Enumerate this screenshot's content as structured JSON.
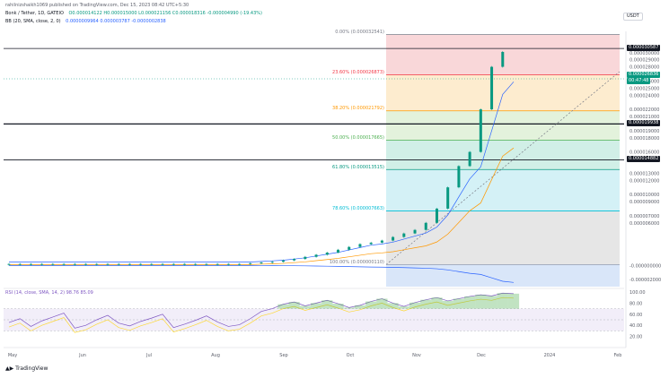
{
  "header": {
    "published": "rahilnizshaikh1069 published on TradingView.com, Dec 15, 2023 08:42 UTC+5:30",
    "symbol_line": "Bonk / Tether, 1D, GATEIO",
    "ohlc": "O0.000014122 H0.000015000 L0.000021156 C0.000018316 -0.000004990 (-19.43%)",
    "bb_line": "BB (20, SMA, close, 2, 0)",
    "bb_values": "0.0000009964 0.000003787 -0.0000002838",
    "currency": "USDT"
  },
  "price_axis": {
    "ticks": [
      "0.000030000",
      "0.000029000",
      "0.000028000",
      "0.000026000",
      "0.000025000",
      "0.000024000",
      "0.000022000",
      "0.000021000",
      "0.000019000",
      "0.000018000",
      "0.000016000",
      "0.000015000",
      "0.000013000",
      "0.000012000",
      "0.000010000",
      "0.000009000",
      "0.000007000",
      "0.000006000",
      "-0.000000000",
      "-0.000002000"
    ],
    "badges": [
      {
        "value": "0.000030587",
        "bg": "#131722",
        "fg": "#ffffff"
      },
      {
        "value": "0.000026836",
        "bg": "#089981",
        "fg": "#ffffff"
      },
      {
        "value": "00:47:48",
        "bg": "#089981",
        "fg": "#ffffff"
      },
      {
        "value": "0.000019938",
        "bg": "#131722",
        "fg": "#ffffff"
      },
      {
        "value": "0.000014882",
        "bg": "#131722",
        "fg": "#ffffff"
      }
    ]
  },
  "rsi_axis": {
    "ticks": [
      "100.00",
      "80.00",
      "60.00",
      "40.00",
      "20.00"
    ]
  },
  "rsi_header": "RSI (14, close, SMA, 14, 2)  98.76  85.09",
  "time_axis": [
    "May",
    "Jun",
    "Jul",
    "Aug",
    "Sep",
    "Oct",
    "Nov",
    "Dec",
    "2024",
    "Feb"
  ],
  "footer_logo": "TradingView",
  "colors": {
    "up": "#089981",
    "down": "#f23645",
    "bb": "#2962ff",
    "rsi": "#7e57c2",
    "rsi_ma": "#fdd835",
    "ema": "#ff9800"
  },
  "chart_data": {
    "type": "line",
    "title": "Bonk / Tether, 1D, GATEIO",
    "xlabel": "",
    "ylabel": "",
    "x_range": [
      "May 2023",
      "Feb 2024"
    ],
    "y_range": [
      -3e-06,
      3.3e-05
    ],
    "fib_levels": [
      {
        "label": "0.00% (0.000032541)",
        "value": 3.2541e-05,
        "color": "#787b86"
      },
      {
        "label": "23.60% (0.000026873)",
        "value": 2.6873e-05,
        "color": "#f23645"
      },
      {
        "label": "38.20% (0.000021792)",
        "value": 2.1792e-05,
        "color": "#ff9800"
      },
      {
        "label": "50.00% (0.000017665)",
        "value": 1.7665e-05,
        "color": "#4caf50"
      },
      {
        "label": "61.80% (0.000013515)",
        "value": 1.3515e-05,
        "color": "#089981"
      },
      {
        "label": "78.60% (0.000007663)",
        "value": 7.663e-06,
        "color": "#00bcd4"
      },
      {
        "label": "100.00% (0.000000110)",
        "value": 1.1e-07,
        "color": "#787b86"
      }
    ],
    "horizontal_lines": [
      3.0587e-05,
      1.9938e-05,
      1.4882e-05
    ],
    "series": [
      {
        "name": "Price",
        "values": [
          2e-07,
          2e-07,
          2e-07,
          2e-07,
          2e-07,
          2e-07,
          2e-07,
          2e-07,
          2e-07,
          2e-07,
          2e-07,
          2e-07,
          2e-07,
          2e-07,
          2e-07,
          2e-07,
          2e-07,
          2e-07,
          2e-07,
          2e-07,
          2e-07,
          2e-07,
          2e-07,
          3e-07,
          4e-07,
          5e-07,
          7e-07,
          9e-07,
          1.2e-06,
          1.5e-06,
          1.8e-06,
          2.2e-06,
          2.6e-06,
          3e-06,
          3.2e-06,
          3.5e-06,
          4e-06,
          4.5e-06,
          5e-06,
          6e-06,
          8e-06,
          1.1e-05,
          1.4e-05,
          1.6e-05,
          2.2e-05,
          2.8e-05,
          3.01e-05
        ]
      },
      {
        "name": "RSI",
        "values": [
          45,
          52,
          38,
          48,
          55,
          62,
          35,
          40,
          50,
          58,
          44,
          39,
          47,
          53,
          60,
          36,
          42,
          49,
          57,
          46,
          38,
          41,
          52,
          65,
          70,
          78,
          82,
          75,
          80,
          85,
          79,
          72,
          76,
          83,
          88,
          80,
          74,
          81,
          86,
          90,
          84,
          88,
          92,
          95,
          93,
          98,
          97
        ]
      }
    ]
  }
}
